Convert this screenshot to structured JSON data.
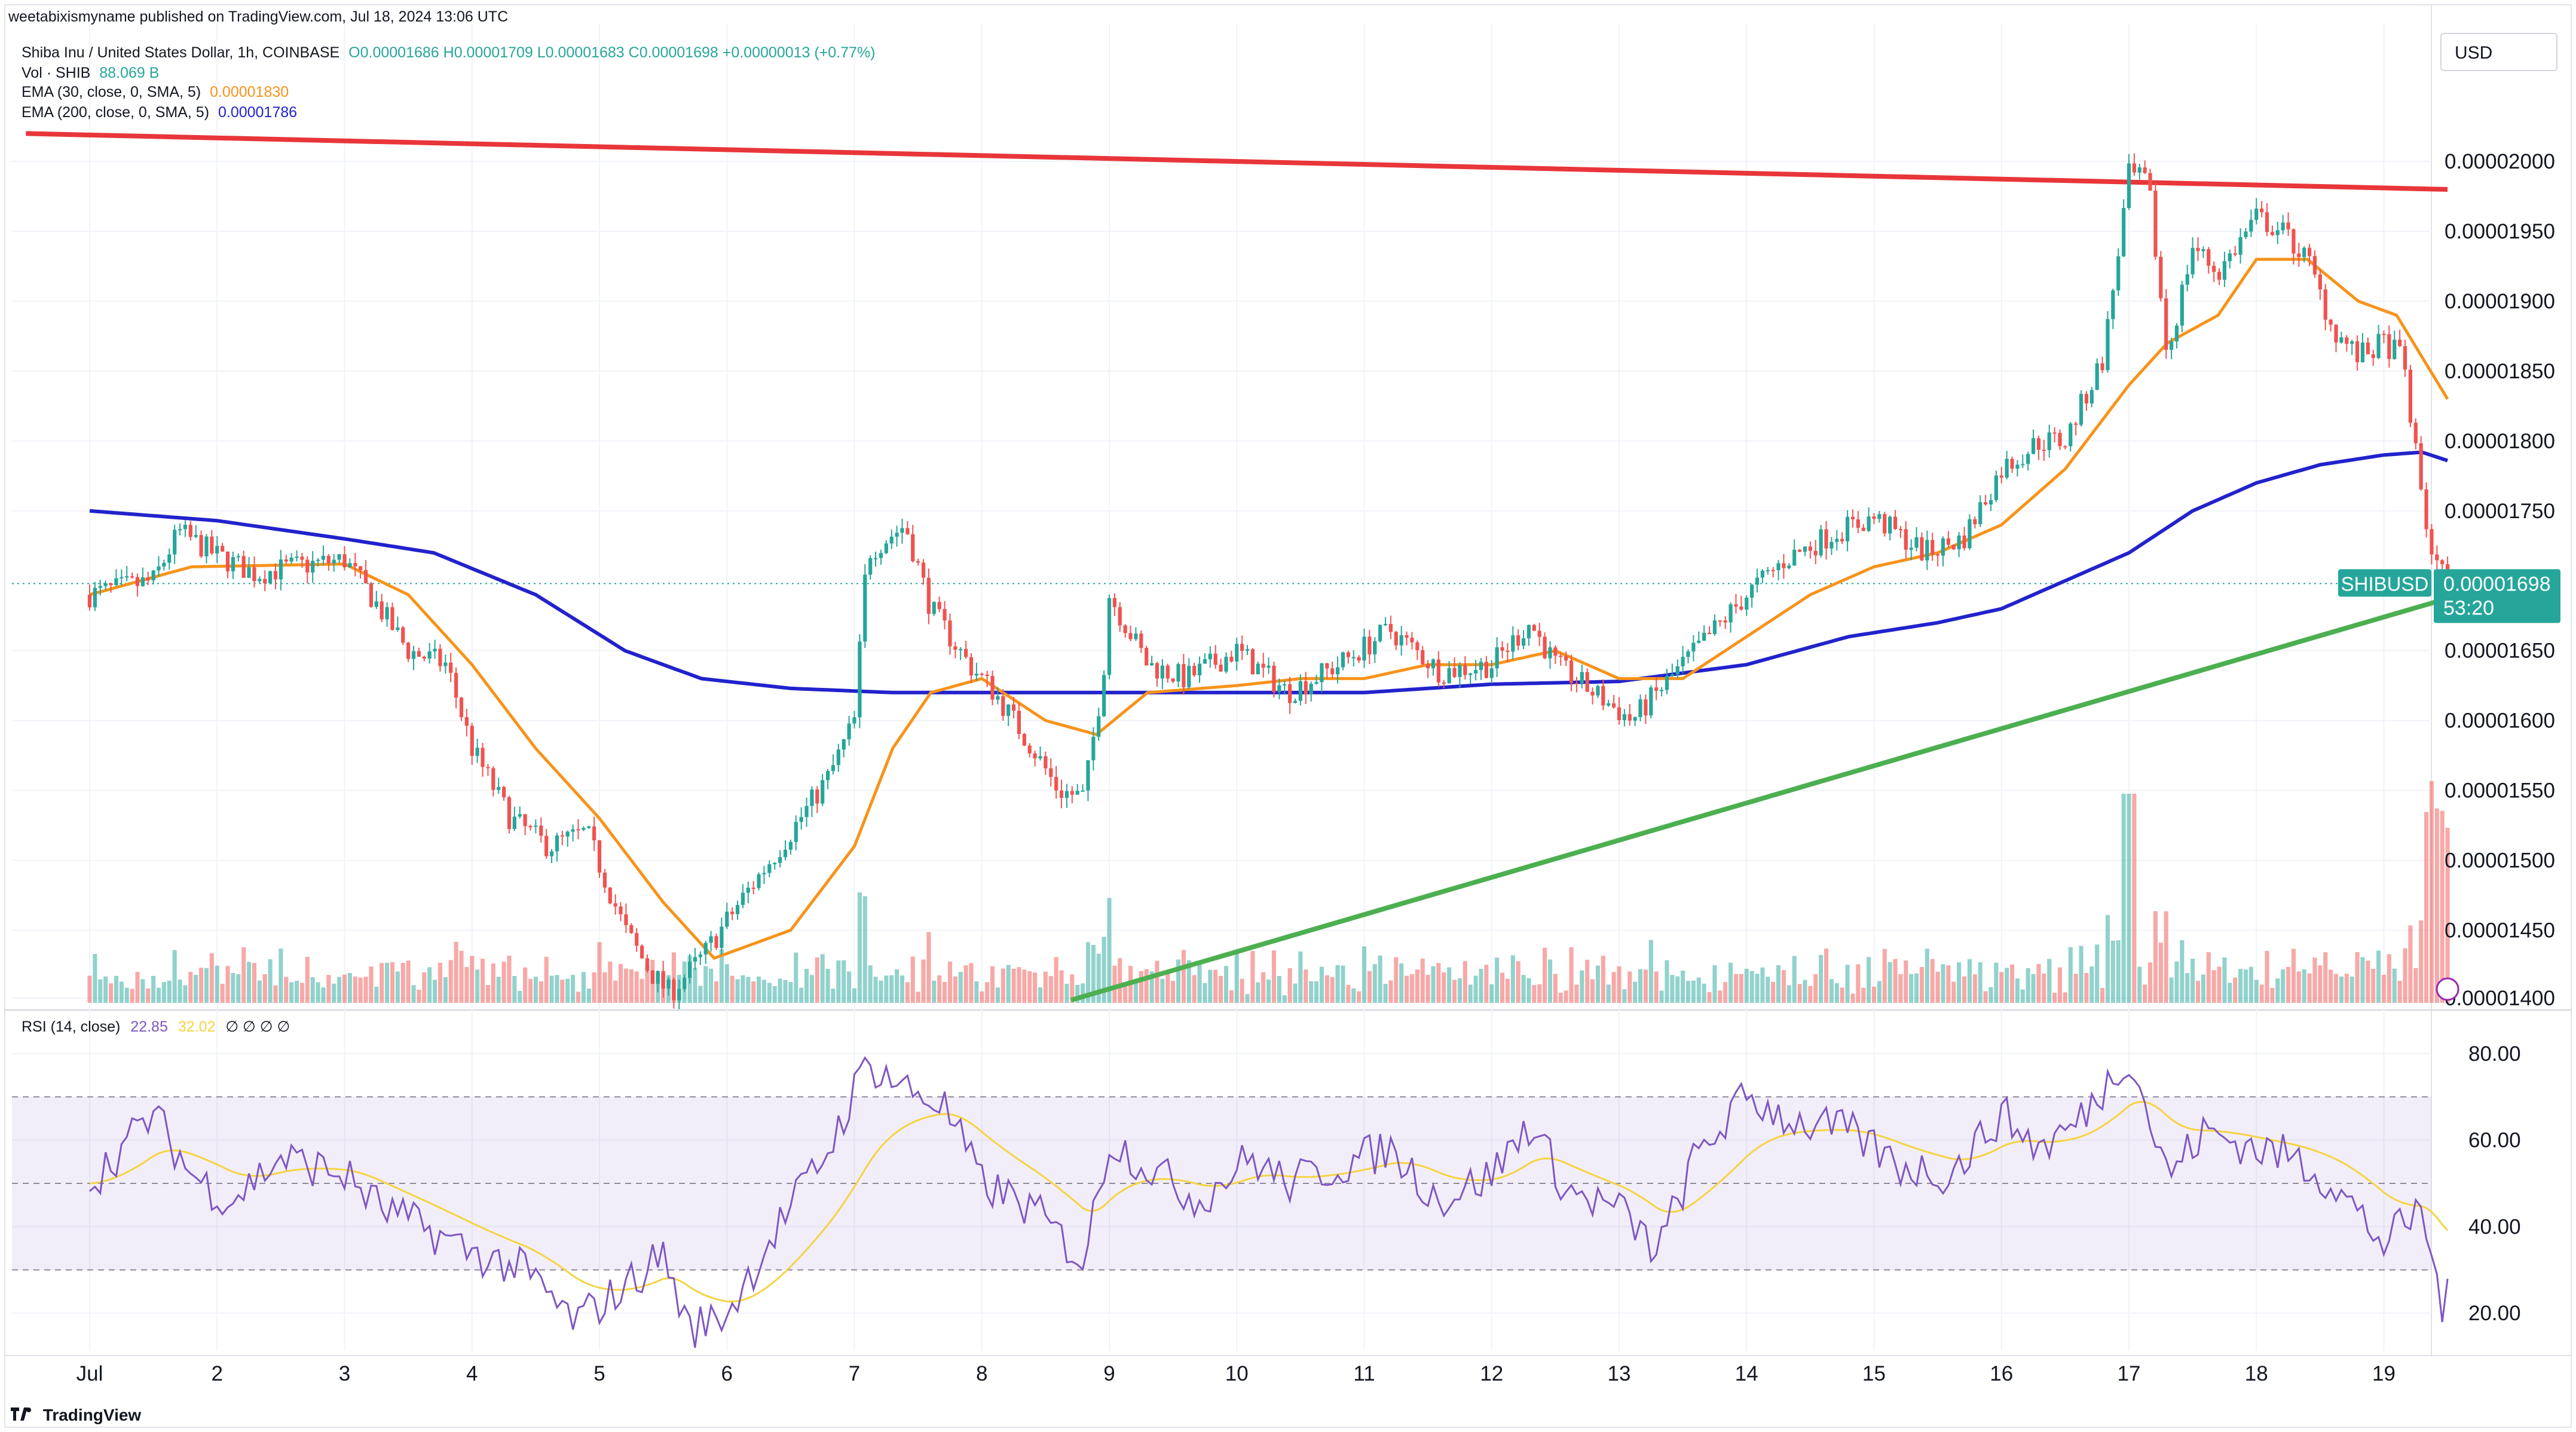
{
  "header": {
    "publisher_text": "weetabixismyname published on TradingView.com, Jul 18, 2024 13:06 UTC"
  },
  "legend": {
    "symbol": "Shiba Inu / United States Dollar, 1h, COINBASE",
    "ohlc": "O0.00001686  H0.00001709  L0.00001683  C0.00001698  +0.00000013 (+0.77%)",
    "vol_label": "Vol · SHIB",
    "vol_value": "88.069 B",
    "ema30_label": "EMA (30, close, 0, SMA, 5)",
    "ema30_value": "0.00001830",
    "ema200_label": "EMA (200, close, 0, SMA, 5)",
    "ema200_value": "0.00001786"
  },
  "currency": "USD",
  "price_tag": {
    "symbol": "SHIBUSD",
    "price": "0.00001698",
    "countdown": "53:20"
  },
  "rsi_legend": {
    "label": "RSI (14, close)",
    "value": "22.85",
    "ma_value": "32.02",
    "hidden_params": "∅ ∅ ∅ ∅"
  },
  "brand": "TradingView",
  "colors": {
    "up": "#26a69a",
    "down": "#ef5350",
    "ema30": "#f7931a",
    "ema200": "#2222cc",
    "resistance": "#e8363a",
    "support": "#4caf50",
    "rsi_line": "#7e57c2",
    "rsi_ma": "#f5d442",
    "rsi_band": "#7e57c2"
  },
  "chart_data": [
    {
      "type": "candlestick",
      "title": "Shiba Inu / United States Dollar, 1h, COINBASE",
      "x_ticks": [
        "Jul",
        "2",
        "3",
        "4",
        "5",
        "6",
        "7",
        "8",
        "9",
        "10",
        "11",
        "12",
        "13",
        "14",
        "15",
        "16",
        "17",
        "18",
        "19"
      ],
      "y_ticks": [
        "0.00002000",
        "0.00001950",
        "0.00001900",
        "0.00001850",
        "0.00001800",
        "0.00001750",
        "0.00001650",
        "0.00001600",
        "0.00001550",
        "0.00001500",
        "0.00001450",
        "0.00001400"
      ],
      "ylim": [
        1.398e-05,
        2.03e-05
      ],
      "price_anchors": [
        [
          0.0,
          1.69e-05
        ],
        [
          0.5,
          1.7e-05
        ],
        [
          0.7,
          1.735e-05
        ],
        [
          1.0,
          1.718e-05
        ],
        [
          1.3,
          1.705e-05
        ],
        [
          1.6,
          1.71e-05
        ],
        [
          2.0,
          1.715e-05
        ],
        [
          2.2,
          1.69e-05
        ],
        [
          2.5,
          1.65e-05
        ],
        [
          2.8,
          1.64e-05
        ],
        [
          3.0,
          1.58e-05
        ],
        [
          3.3,
          1.53e-05
        ],
        [
          3.6,
          1.51e-05
        ],
        [
          3.9,
          1.52e-05
        ],
        [
          4.2,
          1.45e-05
        ],
        [
          4.4,
          1.42e-05
        ],
        [
          4.55,
          1.405e-05
        ],
        [
          4.8,
          1.43e-05
        ],
        [
          5.1,
          1.47e-05
        ],
        [
          5.5,
          1.52e-05
        ],
        [
          5.8,
          1.56e-05
        ],
        [
          6.0,
          1.6e-05
        ],
        [
          6.1,
          1.72e-05
        ],
        [
          6.4,
          1.74e-05
        ],
        [
          6.6,
          1.68e-05
        ],
        [
          6.9,
          1.64e-05
        ],
        [
          7.1,
          1.62e-05
        ],
        [
          7.4,
          1.58e-05
        ],
        [
          7.6,
          1.55e-05
        ],
        [
          7.8,
          1.545e-05
        ],
        [
          7.95,
          1.63e-05
        ],
        [
          8.0,
          1.69e-05
        ],
        [
          8.3,
          1.64e-05
        ],
        [
          8.6,
          1.63e-05
        ],
        [
          9.0,
          1.65e-05
        ],
        [
          9.4,
          1.62e-05
        ],
        [
          9.8,
          1.64e-05
        ],
        [
          10.2,
          1.665e-05
        ],
        [
          10.6,
          1.635e-05
        ],
        [
          11.0,
          1.64e-05
        ],
        [
          11.3,
          1.67e-05
        ],
        [
          11.5,
          1.64e-05
        ],
        [
          11.8,
          1.62e-05
        ],
        [
          12.1,
          1.6e-05
        ],
        [
          12.3,
          1.62e-05
        ],
        [
          12.6,
          1.65e-05
        ],
        [
          13.0,
          1.69e-05
        ],
        [
          13.3,
          1.715e-05
        ],
        [
          13.7,
          1.735e-05
        ],
        [
          14.0,
          1.745e-05
        ],
        [
          14.4,
          1.72e-05
        ],
        [
          14.7,
          1.73e-05
        ],
        [
          15.0,
          1.78e-05
        ],
        [
          15.3,
          1.8e-05
        ],
        [
          15.5,
          1.8e-05
        ],
        [
          15.8,
          1.86e-05
        ],
        [
          16.0,
          1.99e-05
        ],
        [
          16.15,
          1.985e-05
        ],
        [
          16.3,
          1.86e-05
        ],
        [
          16.5,
          1.94e-05
        ],
        [
          16.7,
          1.92e-05
        ],
        [
          17.0,
          1.96e-05
        ],
        [
          17.2,
          1.95e-05
        ],
        [
          17.4,
          1.93e-05
        ],
        [
          17.6,
          1.88e-05
        ],
        [
          17.8,
          1.86e-05
        ],
        [
          18.0,
          1.87e-05
        ],
        [
          18.15,
          1.86e-05
        ],
        [
          18.25,
          1.79e-05
        ],
        [
          18.35,
          1.73e-05
        ],
        [
          18.5,
          1.698e-05
        ]
      ],
      "ema30_anchors": [
        [
          0.0,
          1.69e-05
        ],
        [
          0.8,
          1.71e-05
        ],
        [
          2.0,
          1.712e-05
        ],
        [
          2.5,
          1.69e-05
        ],
        [
          3.0,
          1.64e-05
        ],
        [
          3.5,
          1.58e-05
        ],
        [
          4.0,
          1.53e-05
        ],
        [
          4.5,
          1.47e-05
        ],
        [
          4.9,
          1.43e-05
        ],
        [
          5.5,
          1.45e-05
        ],
        [
          6.0,
          1.51e-05
        ],
        [
          6.3,
          1.58e-05
        ],
        [
          6.6,
          1.62e-05
        ],
        [
          7.0,
          1.63e-05
        ],
        [
          7.5,
          1.6e-05
        ],
        [
          7.9,
          1.59e-05
        ],
        [
          8.3,
          1.62e-05
        ],
        [
          9.0,
          1.625e-05
        ],
        [
          9.5,
          1.63e-05
        ],
        [
          10.0,
          1.63e-05
        ],
        [
          10.5,
          1.64e-05
        ],
        [
          11.0,
          1.64e-05
        ],
        [
          11.5,
          1.65e-05
        ],
        [
          12.0,
          1.63e-05
        ],
        [
          12.5,
          1.63e-05
        ],
        [
          13.0,
          1.66e-05
        ],
        [
          13.5,
          1.69e-05
        ],
        [
          14.0,
          1.71e-05
        ],
        [
          14.5,
          1.72e-05
        ],
        [
          15.0,
          1.74e-05
        ],
        [
          15.5,
          1.78e-05
        ],
        [
          16.0,
          1.84e-05
        ],
        [
          16.3,
          1.87e-05
        ],
        [
          16.7,
          1.89e-05
        ],
        [
          17.0,
          1.93e-05
        ],
        [
          17.4,
          1.93e-05
        ],
        [
          17.8,
          1.9e-05
        ],
        [
          18.1,
          1.89e-05
        ],
        [
          18.3,
          1.86e-05
        ],
        [
          18.5,
          1.83e-05
        ]
      ],
      "ema200_anchors": [
        [
          0.0,
          1.75e-05
        ],
        [
          1.0,
          1.743e-05
        ],
        [
          2.0,
          1.73e-05
        ],
        [
          2.7,
          1.72e-05
        ],
        [
          3.5,
          1.69e-05
        ],
        [
          4.2,
          1.65e-05
        ],
        [
          4.8,
          1.63e-05
        ],
        [
          5.5,
          1.623e-05
        ],
        [
          6.3,
          1.62e-05
        ],
        [
          7.0,
          1.62e-05
        ],
        [
          8.0,
          1.62e-05
        ],
        [
          9.0,
          1.62e-05
        ],
        [
          10.0,
          1.62e-05
        ],
        [
          11.0,
          1.626e-05
        ],
        [
          12.0,
          1.628e-05
        ],
        [
          13.0,
          1.64e-05
        ],
        [
          13.8,
          1.66e-05
        ],
        [
          14.5,
          1.67e-05
        ],
        [
          15.0,
          1.68e-05
        ],
        [
          15.5,
          1.7e-05
        ],
        [
          16.0,
          1.72e-05
        ],
        [
          16.5,
          1.75e-05
        ],
        [
          17.0,
          1.77e-05
        ],
        [
          17.5,
          1.783e-05
        ],
        [
          18.0,
          1.79e-05
        ],
        [
          18.3,
          1.792e-05
        ],
        [
          18.5,
          1.786e-05
        ]
      ],
      "resistance_line": [
        [
          -0.5,
          2.02e-05
        ],
        [
          18.5,
          1.98e-05
        ]
      ],
      "support_line": [
        [
          7.7,
          1.4e-05
        ],
        [
          18.6,
          1.69e-05
        ]
      ],
      "current_price": 1.698e-05
    },
    {
      "type": "line",
      "title": "RSI (14, close)",
      "y_ticks": [
        "80.00",
        "60.00",
        "40.00",
        "20.00"
      ],
      "ylim": [
        12,
        88
      ],
      "bands": [
        70,
        50,
        30
      ],
      "rsi_anchors": [
        [
          0.0,
          50
        ],
        [
          0.5,
          66
        ],
        [
          0.8,
          52
        ],
        [
          1.1,
          46
        ],
        [
          1.5,
          56
        ],
        [
          2.0,
          52
        ],
        [
          2.3,
          44
        ],
        [
          2.6,
          40
        ],
        [
          3.0,
          34
        ],
        [
          3.4,
          30
        ],
        [
          3.8,
          18
        ],
        [
          4.2,
          26
        ],
        [
          4.5,
          34
        ],
        [
          4.7,
          16
        ],
        [
          5.0,
          20
        ],
        [
          5.4,
          40
        ],
        [
          5.8,
          58
        ],
        [
          6.1,
          78
        ],
        [
          6.4,
          72
        ],
        [
          6.7,
          68
        ],
        [
          7.0,
          50
        ],
        [
          7.4,
          44
        ],
        [
          7.8,
          32
        ],
        [
          8.0,
          60
        ],
        [
          8.3,
          54
        ],
        [
          8.7,
          46
        ],
        [
          9.1,
          56
        ],
        [
          9.4,
          50
        ],
        [
          9.8,
          54
        ],
        [
          10.2,
          58
        ],
        [
          10.6,
          46
        ],
        [
          11.0,
          52
        ],
        [
          11.3,
          64
        ],
        [
          11.6,
          48
        ],
        [
          12.0,
          44
        ],
        [
          12.3,
          34
        ],
        [
          12.6,
          56
        ],
        [
          13.0,
          70
        ],
        [
          13.4,
          64
        ],
        [
          13.8,
          62
        ],
        [
          14.2,
          54
        ],
        [
          14.6,
          52
        ],
        [
          15.0,
          66
        ],
        [
          15.3,
          58
        ],
        [
          15.6,
          64
        ],
        [
          16.0,
          80
        ],
        [
          16.3,
          52
        ],
        [
          16.6,
          62
        ],
        [
          17.0,
          58
        ],
        [
          17.3,
          56
        ],
        [
          17.6,
          50
        ],
        [
          18.0,
          36
        ],
        [
          18.3,
          44
        ],
        [
          18.45,
          22
        ],
        [
          18.5,
          23
        ]
      ],
      "current_rsi": 22.85,
      "current_rsi_ma": 32.02
    }
  ]
}
